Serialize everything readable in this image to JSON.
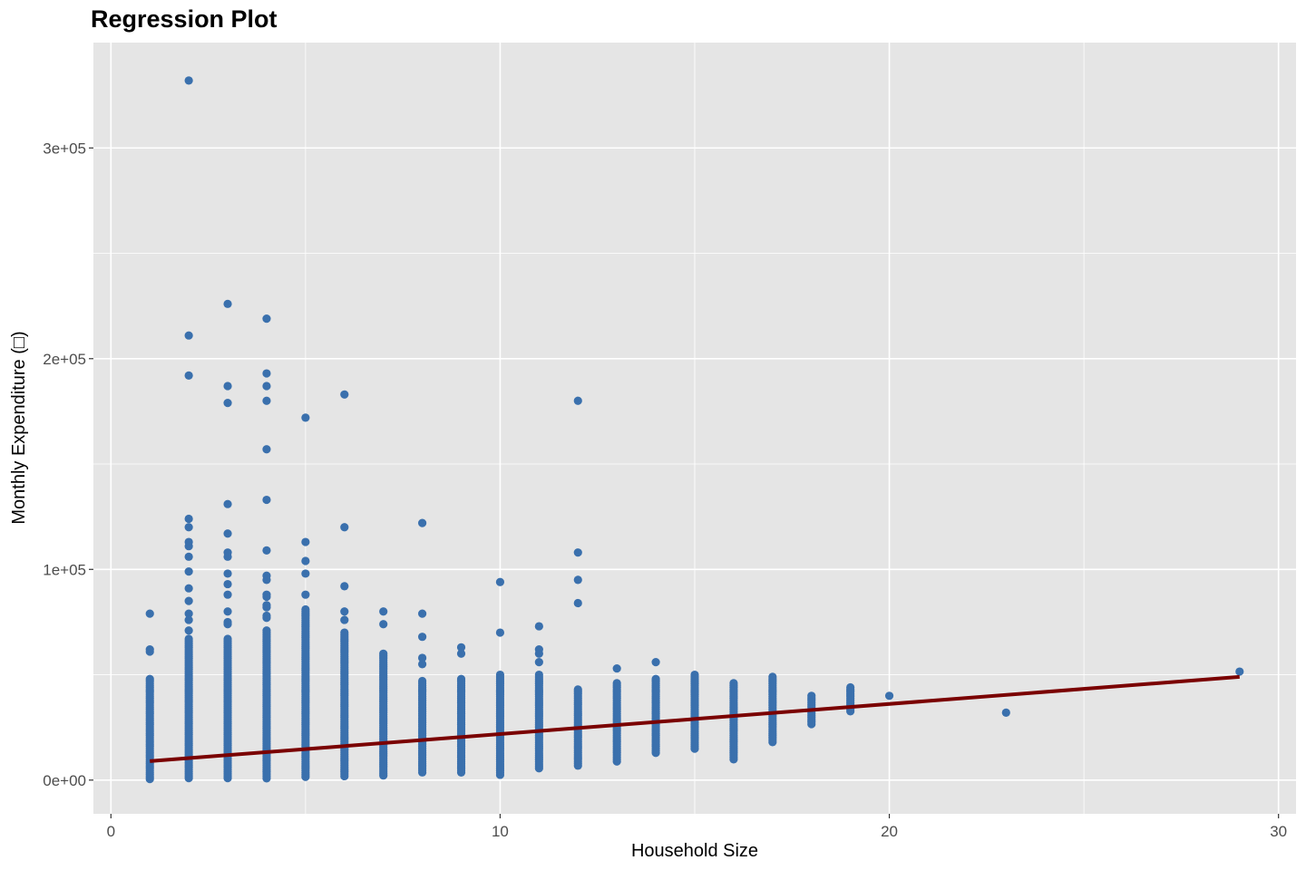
{
  "chart_data": {
    "type": "scatter",
    "title": "Regression Plot",
    "xlabel": "Household Size",
    "ylabel": "Monthly Expenditure (□)",
    "xlim": [
      -0.45,
      30.45
    ],
    "ylim": [
      -16000,
      350000
    ],
    "x_ticks": [
      0,
      10,
      20,
      30
    ],
    "x_tick_labels": [
      "0",
      "10",
      "20",
      "30"
    ],
    "y_ticks": [
      0,
      100000,
      200000,
      300000
    ],
    "y_tick_labels": [
      "0e+00",
      "1e+05",
      "2e+05",
      "3e+05"
    ],
    "grid": true,
    "legend": "none",
    "colors": {
      "panel": "#e5e5e5",
      "grid": "#ffffff",
      "points": "#3a70ad",
      "line": "#7a0000"
    },
    "series": [
      {
        "type": "scatter",
        "groups": [
          {
            "x": 1,
            "min": 500,
            "max": 48000,
            "outliers": [
              79000,
              62000,
              61000
            ]
          },
          {
            "x": 2,
            "min": 500,
            "max": 67000,
            "outliers": [
              332000,
              211000,
              192000,
              124000,
              120000,
              113000,
              111000,
              106000,
              99000,
              91000,
              85000,
              79000,
              76000,
              71000
            ]
          },
          {
            "x": 3,
            "min": 500,
            "max": 67000,
            "outliers": [
              226000,
              187000,
              179000,
              131000,
              117000,
              108000,
              106000,
              98000,
              93000,
              88000,
              80000,
              75000,
              74000
            ]
          },
          {
            "x": 4,
            "min": 500,
            "max": 70000,
            "outliers": [
              219000,
              193000,
              187000,
              180000,
              157000,
              133000,
              109000,
              97000,
              95000,
              88000,
              87000,
              83000,
              82000,
              78000,
              77000,
              71000
            ]
          },
          {
            "x": 5,
            "min": 1000,
            "max": 81000,
            "outliers": [
              172000,
              113000,
              104000,
              98000,
              88000
            ]
          },
          {
            "x": 6,
            "min": 1500,
            "max": 70000,
            "outliers": [
              183000,
              120000,
              92000,
              80000,
              76000
            ]
          },
          {
            "x": 7,
            "min": 2000,
            "max": 60000,
            "outliers": [
              80000,
              74000
            ]
          },
          {
            "x": 8,
            "min": 3500,
            "max": 47000,
            "outliers": [
              122000,
              79000,
              68000,
              58000,
              55000
            ]
          },
          {
            "x": 9,
            "min": 3000,
            "max": 48000,
            "outliers": [
              63000,
              60000
            ]
          },
          {
            "x": 10,
            "min": 1500,
            "max": 50000,
            "outliers": [
              94000,
              70000
            ]
          },
          {
            "x": 11,
            "min": 5500,
            "max": 50000,
            "outliers": [
              73000,
              62000,
              60000,
              56000
            ]
          },
          {
            "x": 12,
            "min": 6500,
            "max": 43000,
            "outliers": [
              180000,
              108000,
              95000,
              84000
            ]
          },
          {
            "x": 13,
            "min": 8500,
            "max": 46000,
            "outliers": [
              53000
            ]
          },
          {
            "x": 14,
            "min": 12500,
            "max": 48000,
            "outliers": [
              56000
            ]
          },
          {
            "x": 15,
            "min": 14000,
            "max": 50000,
            "outliers": []
          },
          {
            "x": 16,
            "min": 9000,
            "max": 46000,
            "outliers": []
          },
          {
            "x": 17,
            "min": 18000,
            "max": 49000,
            "outliers": []
          },
          {
            "x": 18,
            "min": 26000,
            "max": 40000,
            "outliers": []
          },
          {
            "x": 19,
            "min": 32000,
            "max": 44000,
            "outliers": []
          },
          {
            "x": 20,
            "min": 40000,
            "max": 40000,
            "outliers": []
          },
          {
            "x": 23,
            "min": 32000,
            "max": 32000,
            "outliers": []
          },
          {
            "x": 29,
            "min": 51500,
            "max": 51500,
            "outliers": []
          }
        ]
      },
      {
        "type": "line",
        "x": [
          1,
          29
        ],
        "y": [
          9000,
          49000
        ]
      }
    ]
  }
}
